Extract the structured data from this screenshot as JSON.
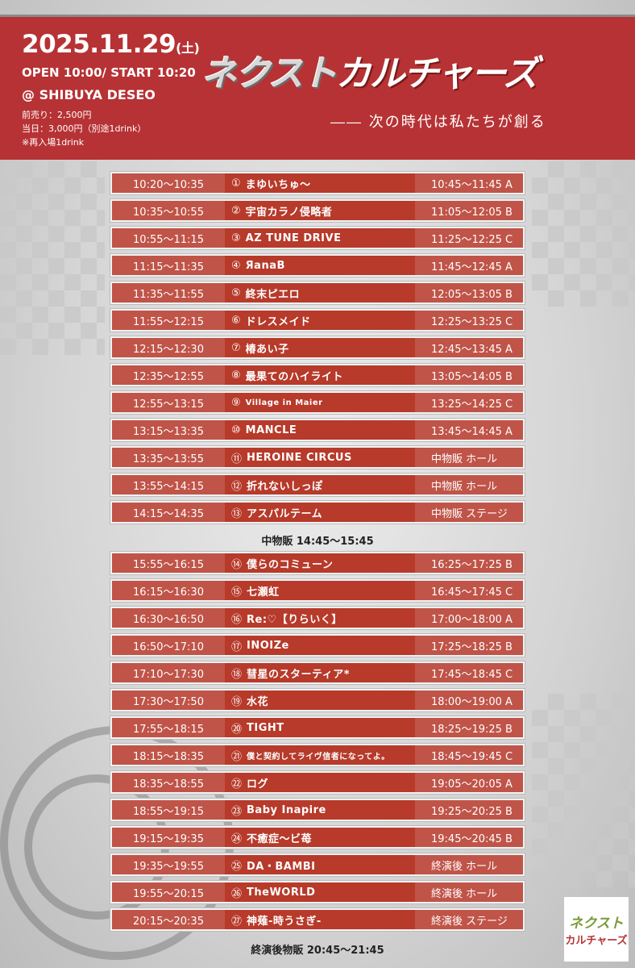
{
  "header": {
    "date": "2025.11.29",
    "weekday": "(土)",
    "open_start": "OPEN 10:00/ START 10:20",
    "venue": "@ SHIBUYA DESEO",
    "advance": "前売り：2,500円",
    "door": "当日：3,000円（別途1drink）",
    "reentry": "※再入場1drink",
    "title_a": "ネクスト",
    "title_b": "カルチャーズ",
    "subtitle": "―― 次の時代は私たちが創る"
  },
  "colors": {
    "header_red": "#b73234",
    "row_light": "#c05448",
    "row_dark": "#b73a2a"
  },
  "block1": [
    {
      "time": "10:20〜10:35",
      "no": "①",
      "artist": "まゆいちゅ〜",
      "tokuten": "10:45〜11:45 A"
    },
    {
      "time": "10:35〜10:55",
      "no": "②",
      "artist": "宇宙カラノ侵略者",
      "tokuten": "11:05〜12:05 B"
    },
    {
      "time": "10:55〜11:15",
      "no": "③",
      "artist": "AZ TUNE DRIVE",
      "tokuten": "11:25〜12:25 C"
    },
    {
      "time": "11:15〜11:35",
      "no": "④",
      "artist": "ЯanaB",
      "tokuten": "11:45〜12:45 A"
    },
    {
      "time": "11:35〜11:55",
      "no": "⑤",
      "artist": "終末ピエロ",
      "tokuten": "12:05〜13:05 B"
    },
    {
      "time": "11:55〜12:15",
      "no": "⑥",
      "artist": "ドレスメイド",
      "tokuten": "12:25〜13:25 C"
    },
    {
      "time": "12:15〜12:30",
      "no": "⑦",
      "artist": "椿あい子",
      "tokuten": "12:45〜13:45 A"
    },
    {
      "time": "12:35〜12:55",
      "no": "⑧",
      "artist": "最果てのハイライト",
      "tokuten": "13:05〜14:05 B"
    },
    {
      "time": "12:55〜13:15",
      "no": "⑨",
      "artist": "Village in Maier",
      "tokuten": "13:25〜14:25 C"
    },
    {
      "time": "13:15〜13:35",
      "no": "⑩",
      "artist": "MANCLE",
      "tokuten": "13:45〜14:45 A"
    },
    {
      "time": "13:35〜13:55",
      "no": "⑪",
      "artist": "HEROINE CIRCUS",
      "tokuten": "中物販 ホール"
    },
    {
      "time": "13:55〜14:15",
      "no": "⑫",
      "artist": "折れないしっぽ",
      "tokuten": "中物販 ホール"
    },
    {
      "time": "14:15〜14:35",
      "no": "⑬",
      "artist": "アスパルテーム",
      "tokuten": "中物販 ステージ"
    }
  ],
  "mid_note": "中物販  14:45〜15:45",
  "block2": [
    {
      "time": "15:55〜16:15",
      "no": "⑭",
      "artist": "僕らのコミューン",
      "tokuten": "16:25〜17:25 B"
    },
    {
      "time": "16:15〜16:30",
      "no": "⑮",
      "artist": "七瀬虹",
      "tokuten": "16:45〜17:45 C"
    },
    {
      "time": "16:30〜16:50",
      "no": "⑯",
      "artist": "Re:♡【りらいく】",
      "tokuten": "17:00〜18:00 A"
    },
    {
      "time": "16:50〜17:10",
      "no": "⑰",
      "artist": "INOIZe",
      "tokuten": "17:25〜18:25 B"
    },
    {
      "time": "17:10〜17:30",
      "no": "⑱",
      "artist": "彗星のスターティア*",
      "tokuten": "17:45〜18:45 C"
    },
    {
      "time": "17:30〜17:50",
      "no": "⑲",
      "artist": "水花",
      "tokuten": "18:00〜19:00 A"
    },
    {
      "time": "17:55〜18:15",
      "no": "⑳",
      "artist": "TIGHT",
      "tokuten": "18:25〜19:25 B"
    },
    {
      "time": "18:15〜18:35",
      "no": "㉑",
      "artist": "僕と契約してライヴ信者になってよ。",
      "tokuten": "18:45〜19:45 C"
    },
    {
      "time": "18:35〜18:55",
      "no": "㉒",
      "artist": "ログ",
      "tokuten": "19:05〜20:05 A"
    },
    {
      "time": "18:55〜19:15",
      "no": "㉓",
      "artist": "Baby Inapire",
      "tokuten": "19:25〜20:25 B"
    },
    {
      "time": "19:15〜19:35",
      "no": "㉔",
      "artist": "不癒症〜ビ苺",
      "tokuten": "19:45〜20:45 B"
    },
    {
      "time": "19:35〜19:55",
      "no": "㉕",
      "artist": "DA・BAMBI",
      "tokuten": "終演後 ホール"
    },
    {
      "time": "19:55〜20:15",
      "no": "㉖",
      "artist": "TheWORLD",
      "tokuten": "終演後 ホール"
    },
    {
      "time": "20:15〜20:35",
      "no": "㉗",
      "artist": "神薙-時うさぎ-",
      "tokuten": "終演後 ステージ"
    }
  ],
  "end_note": "終演後物販  20:45〜21:45",
  "logo": {
    "line1": "ネクスト",
    "line2": "カルチャーズ"
  }
}
